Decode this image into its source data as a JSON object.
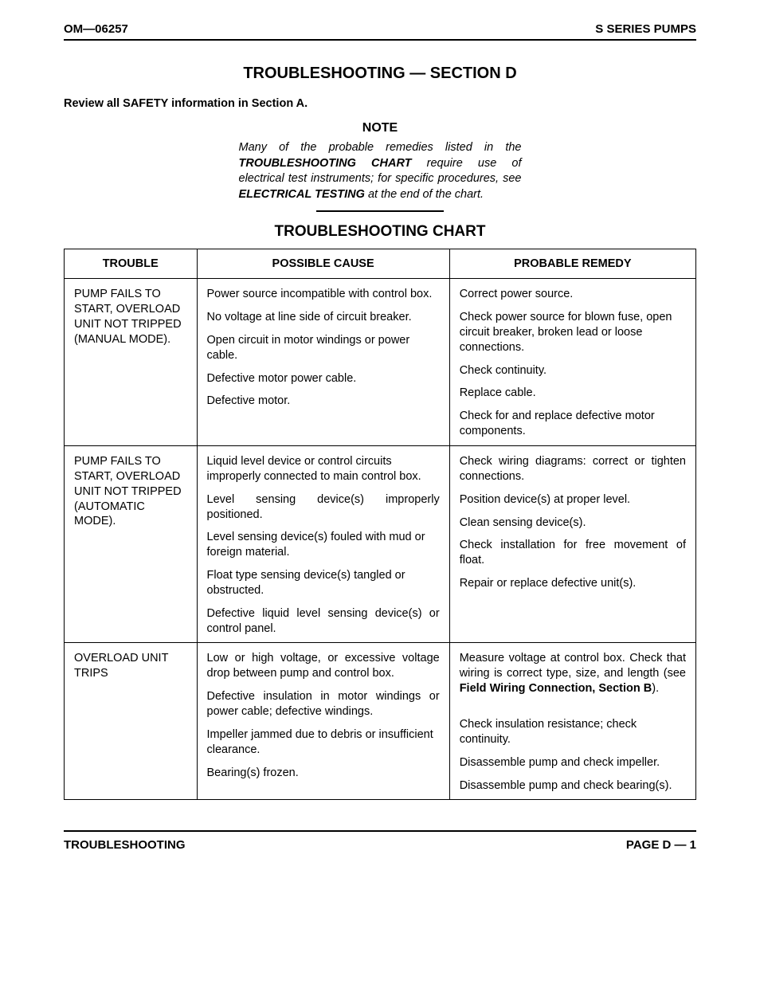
{
  "header": {
    "left": "OM—06257",
    "right": "S SERIES PUMPS"
  },
  "section_title": "TROUBLESHOOTING — SECTION D",
  "review": "Review all SAFETY information in Section A.",
  "note": {
    "title": "NOTE",
    "line1_pre": "Many of the probable remedies listed in the ",
    "line1_bold": "TROUBLESHOOTING CHART",
    "line1_post": " require use of electrical test instruments; for specific procedures, see ",
    "line2_bold": "ELECTRICAL TESTING",
    "line2_post": " at the end of the chart."
  },
  "chart_title": "TROUBLESHOOTING CHART",
  "columns": {
    "trouble": "TROUBLE",
    "cause": "POSSIBLE CAUSE",
    "remedy": "PROBABLE REMEDY"
  },
  "groups": [
    {
      "trouble": "PUMP FAILS TO START, OVERLOAD UNIT NOT TRIPPED (MANUAL MODE).",
      "rows": [
        {
          "cause": "Power source incompatible with control box.",
          "remedy": "Correct power source."
        },
        {
          "cause": "No voltage at line side of circuit breaker.",
          "cause_justify": true,
          "remedy": "Check power source for blown fuse, open circuit breaker, broken lead or loose connections."
        },
        {
          "cause": "Open circuit in motor windings or power cable.",
          "remedy": "Check continuity."
        },
        {
          "cause": "Defective motor power cable.",
          "remedy": "Replace cable."
        },
        {
          "cause": "Defective motor.",
          "remedy": "Check for and replace defective motor components."
        }
      ]
    },
    {
      "trouble": "PUMP FAILS TO START, OVERLOAD UNIT NOT TRIPPED (AUTOMATIC MODE).",
      "rows": [
        {
          "cause": "Liquid level device or control circuits improperly connected to main control box.",
          "remedy": "Check wiring diagrams: correct or tighten connections.",
          "remedy_justify": true
        },
        {
          "cause": "Level sensing device(s) improperly positioned.",
          "cause_justify": true,
          "remedy": "Position device(s) at proper level.",
          "remedy_justify": true
        },
        {
          "cause": "Level sensing device(s) fouled with mud or foreign material.",
          "remedy": "Clean sensing device(s)."
        },
        {
          "cause": "Float type sensing device(s) tangled or obstructed.",
          "remedy": "Check installation for free movement of float.",
          "remedy_justify": true
        },
        {
          "cause": "Defective liquid level sensing device(s) or control panel.",
          "cause_justify": true,
          "remedy": "Repair or replace defective unit(s)."
        }
      ]
    },
    {
      "trouble": "OVERLOAD UNIT TRIPS",
      "rows": [
        {
          "cause": "Low or high voltage, or excessive voltage drop between pump and control box.",
          "cause_justify": true,
          "remedy_pre": "Measure voltage at control box. Check that wiring is correct type, size, and length (see ",
          "remedy_bold": "Field Wiring Connection, Section B",
          "remedy_post": ").",
          "remedy_justify": true,
          "remedy_gap": true
        },
        {
          "cause": "Defective insulation in motor windings or power cable; defective windings.",
          "cause_justify": true,
          "remedy": "Check insulation resistance; check continuity."
        },
        {
          "cause": "Impeller jammed due to debris or insufficient clearance.",
          "remedy": "Disassemble pump and check impeller."
        },
        {
          "cause": "Bearing(s) frozen.",
          "remedy": "Disassemble pump and check bearing(s)."
        }
      ]
    }
  ],
  "footer": {
    "left": "TROUBLESHOOTING",
    "right": "PAGE D — 1"
  }
}
